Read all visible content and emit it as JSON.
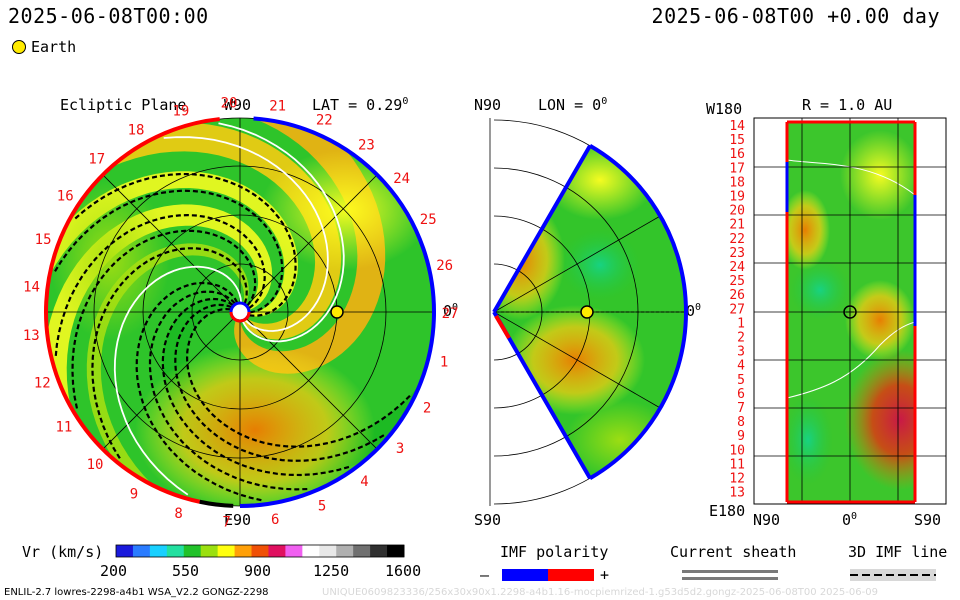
{
  "header": {
    "left_time": "2025-06-08T00:00",
    "right_time": "2025-06-08T00 +0.00 day"
  },
  "legend": {
    "earth_label": "Earth"
  },
  "panels": {
    "ecliptic": {
      "title": "Ecliptic Plane",
      "top_label": "W90",
      "lat_label": "LAT = 0.29",
      "lat_sup": "0",
      "right_label": "0",
      "right_sup": "0",
      "bottom_label": "E90",
      "sector_numbers": [
        "20",
        "21",
        "22",
        "23",
        "24",
        "25",
        "26",
        "27",
        "1",
        "2",
        "3",
        "4",
        "5",
        "6",
        "7",
        "8",
        "9",
        "10",
        "11",
        "12",
        "13",
        "14",
        "15",
        "16",
        "17",
        "18",
        "19"
      ]
    },
    "meridional": {
      "top_label": "N90",
      "lon_label": "LON = 0",
      "lon_sup": "0",
      "right_label": "0",
      "right_sup": "0",
      "bottom_label": "S90"
    },
    "radial": {
      "top_label": "W180",
      "r_label": "R = 1.0 AU",
      "bottom_label": "E180",
      "row_labels": [
        "14",
        "15",
        "16",
        "17",
        "18",
        "19",
        "20",
        "21",
        "22",
        "23",
        "24",
        "25",
        "26",
        "27",
        "1",
        "2",
        "3",
        "4",
        "5",
        "6",
        "7",
        "8",
        "9",
        "10",
        "11",
        "12",
        "13"
      ],
      "x_labels": [
        "N90",
        "0",
        "S90"
      ],
      "x_mid_sup": "0"
    }
  },
  "colorbar": {
    "title": "Vr (km/s)",
    "ticks": [
      "200",
      "550",
      "900",
      "1250",
      "1600"
    ],
    "colors": [
      "#1a1adc",
      "#2a7cff",
      "#19d0ff",
      "#23e0a0",
      "#22c22a",
      "#9be010",
      "#ffff10",
      "#ffa008",
      "#f05006",
      "#e01060",
      "#f060f0",
      "#ffffff",
      "#e8e8e8",
      "#b0b0b0",
      "#707070",
      "#303030",
      "#000000"
    ]
  },
  "imf_legend": {
    "title": "IMF polarity",
    "minus": "–",
    "plus": "+",
    "neg_color": "#0000ff",
    "pos_color": "#ff0000"
  },
  "sheath_legend": {
    "title": "Current sheath"
  },
  "imf_line_legend": {
    "title": "3D IMF line"
  },
  "footer": {
    "left": "ENLIL-2.7 lowres-2298-a4b1 WSA_V2.2 GONGZ-2298",
    "right": "UNIQUE0609823336/256x30x90x1.2298-a4b1.16-mocpiemrized-1.g53d5d2.gongz-2025-06-08T00 2025-06-09"
  },
  "chart_data": [
    {
      "type": "heatmap",
      "title": "Ecliptic Plane",
      "quantity": "Vr (km/s)",
      "range": [
        200,
        1600
      ],
      "lat_deg": 0.29,
      "markers": [
        {
          "name": "Earth",
          "lon_deg": 0,
          "r_au": 1.0
        }
      ]
    },
    {
      "type": "heatmap",
      "title": "LON = 0",
      "quantity": "Vr (km/s)",
      "range": [
        200,
        1600
      ],
      "lat_span_deg": [
        -60,
        60
      ],
      "markers": [
        {
          "name": "Earth",
          "lat_deg": 0,
          "r_au": 1.0
        }
      ]
    },
    {
      "type": "heatmap",
      "title": "R = 1.0 AU",
      "quantity": "Vr (km/s)",
      "range": [
        200,
        1600
      ],
      "x_axis": [
        "N90",
        "0",
        "S90"
      ],
      "y_axis": [
        "W180",
        "E180"
      ],
      "markers": [
        {
          "name": "Earth",
          "lat_deg": 0,
          "lon_deg": 0
        }
      ]
    }
  ]
}
